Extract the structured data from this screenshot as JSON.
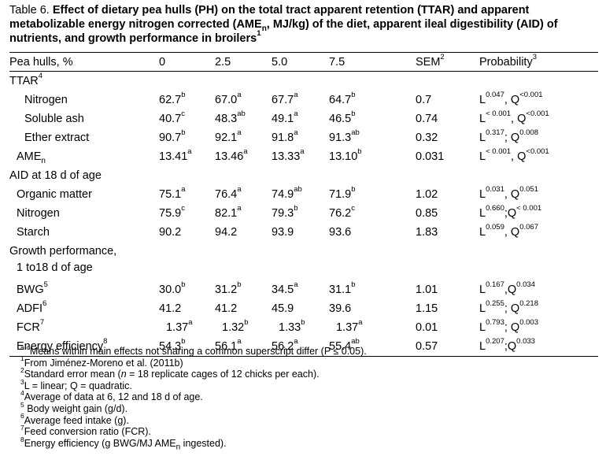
{
  "caption": {
    "lead": "Table 6.",
    "bold": "Effect of dietary pea hulls (PH) on the total tract apparent retention (TTAR) and apparent metabolizable energy nitrogen corrected (AME",
    "bold_sub": "n",
    "bold_2": ", MJ/kg) of the diet, apparent ileal digestibility (AID) of nutrients, and growth performance in broilers",
    "bold_sup": "1"
  },
  "header": {
    "label": "Pea hulls, %",
    "col_0": "0",
    "col_25": "2.5",
    "col_50": "5.0",
    "col_75": "7.5",
    "sem": "SEM",
    "sem_sup": "2",
    "prob": "Probability",
    "prob_sup": "3"
  },
  "rows": {
    "ttar": {
      "label": "TTAR",
      "sup": "4"
    },
    "nitrogen": {
      "label": "Nitrogen",
      "v0": "62.7",
      "s0": "b",
      "v25": "67.0",
      "s25": "a",
      "v50": "67.7",
      "s50": "a",
      "v75": "64.7",
      "s75": "b",
      "sem": "0.7",
      "pL": "L",
      "pLs": "0.047",
      "pSep": ", ",
      "pQ": "Q",
      "pQs": "<0.001"
    },
    "soluble_ash": {
      "label": "Soluble ash",
      "v0": "40.7",
      "s0": "c",
      "v25": "48.3",
      "s25": "ab",
      "v50": "49.1",
      "s50": "a",
      "v75": "46.5",
      "s75": "b",
      "sem": "0.74",
      "pL": "L",
      "pLs": "< 0.001",
      "pSep": ", ",
      "pQ": "Q",
      "pQs": "<0.001"
    },
    "ether_extract": {
      "label": "Ether extract",
      "v0": "90.7",
      "s0": "b",
      "v25": "92.1",
      "s25": "a",
      "v50": "91.8",
      "s50": "a",
      "v75": "91.3",
      "s75": "ab",
      "sem": "0.32",
      "pL": "L",
      "pLs": "0.317",
      "pSep": "; ",
      "pQ": "Q",
      "pQs": "0.008"
    },
    "amen": {
      "label": "AME",
      "label_sub": "n",
      "v0": "13.41",
      "s0": "a",
      "v25": "13.46",
      "s25": "a",
      "v50": "13.33",
      "s50": "a",
      "v75": "13.10",
      "s75": "b",
      "sem": "0.031",
      "pL": "L",
      "pLs": "< 0.001",
      "pSep": ", ",
      "pQ": "Q",
      "pQs": "<0.001"
    },
    "aid": {
      "label": "AID at 18 d of age"
    },
    "organic_matter": {
      "label": "Organic matter",
      "v0": "75.1",
      "s0": "a",
      "v25": "76.4",
      "s25": "a",
      "v50": "74.9",
      "s50": "ab",
      "v75": "71.9",
      "s75": "b",
      "sem": "1.02",
      "pL": "L",
      "pLs": "0.031",
      "pSep": ", ",
      "pQ": "Q",
      "pQs": "0.051"
    },
    "aid_nitrogen": {
      "label": "Nitrogen",
      "v0": "75.9",
      "s0": "c",
      "v25": "82.1",
      "s25": "a",
      "v50": "79.3",
      "s50": "b",
      "v75": "76.2",
      "s75": "c",
      "sem": "0.85",
      "pL": "L",
      "pLs": "0.660",
      "pSep": ";",
      "pQ": "Q",
      "pQs": "< 0.001"
    },
    "starch": {
      "label": "Starch",
      "v0": "90.2",
      "v25": "94.2",
      "v50": "93.9",
      "v75": "93.6",
      "sem": "1.83",
      "pL": "L",
      "pLs": "0.059",
      "pSep": ", ",
      "pQ": "Q",
      "pQs": "0.067"
    },
    "growth": {
      "label": "Growth performance,",
      "label_2": "1 to18 d of age"
    },
    "bwg": {
      "label": "BWG",
      "sup": "5",
      "v0": "30.0",
      "s0": "b",
      "v25": "31.2",
      "s25": "b",
      "v50": "34.5",
      "s50": "a",
      "v75": "31.1",
      "s75": "b",
      "sem": "1.01",
      "pL": "L",
      "pLs": "0.167",
      "pSep": ",",
      "pQ": "Q",
      "pQs": "0.034"
    },
    "adfi": {
      "label": "ADFI",
      "sup": "6",
      "v0": "41.2",
      "v25": "41.2",
      "v50": "45.9",
      "v75": "39.6",
      "sem": "1.15",
      "pL": "L",
      "pLs": "0.255",
      "pSep": "; ",
      "pQ": "Q",
      "pQs": "0.218"
    },
    "fcr": {
      "label": "FCR",
      "sup": "7",
      "v0": "1.37",
      "s0": "a",
      "v25": "1.32",
      "s25": "b",
      "v50": "1.33",
      "s50": "b",
      "v75": "1.37",
      "s75": "a",
      "sem": "0.01",
      "pL": "L",
      "pLs": "0.793",
      "pSep": "; ",
      "pQ": "Q",
      "pQs": "0.003"
    },
    "energy_eff": {
      "label": "Energy efficiency",
      "sup": "8",
      "v0": "54.3",
      "s0": "b",
      "v25": "56.1",
      "s25": "a",
      "v50": "56.2",
      "s50": "a",
      "v75": "55.4",
      "s75": "ab",
      "sem": "0.57",
      "pL": "L",
      "pLs": "0.207",
      "pSep": ";",
      "pQ": "Q",
      "pQs": "0.033"
    }
  },
  "notes": {
    "n0_sup": "a-c",
    "n0": "Means within main effects not sharing a common superscript differ (P ≤ 0.05).",
    "n1_sup": "1",
    "n1": "From Jiménez-Moreno et al. (2011b)",
    "n2_sup": "2",
    "n2_a": "Standard error mean (",
    "n2_n": "n",
    "n2_b": " = 18 replicate cages of 12 chicks per each).",
    "n3_sup": "3",
    "n3": "L = linear; Q = quadratic.",
    "n4_sup": "4",
    "n4": "Average of data at 6, 12 and 18 d of age.",
    "n5_sup": "5",
    "n5": " Body weight gain (g/d).",
    "n6_sup": "6",
    "n6": "Average feed intake (g).",
    "n7_sup": "7",
    "n7": "Feed conversion ratio (FCR).",
    "n8_sup": "8",
    "n8_a": "Energy efficiency (g BWG/MJ AME",
    "n8_sub": "n",
    "n8_b": " ingested)."
  }
}
